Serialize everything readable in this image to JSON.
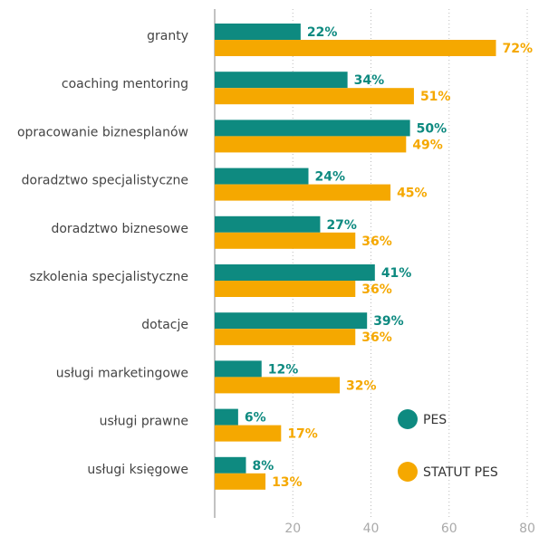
{
  "chart_data": {
    "type": "barh",
    "categories": [
      "granty",
      "coaching mentoring",
      "opracowanie biznesplanów",
      "doradztwo specjalistyczne",
      "doradztwo biznesowe",
      "szkolenia specjalistyczne",
      "dotacje",
      "usługi marketingowe",
      "usługi prawne",
      "usługi księgowe"
    ],
    "series": [
      {
        "name": "PES",
        "color": "#0e8a80",
        "values": [
          22,
          34,
          50,
          24,
          27,
          41,
          39,
          12,
          6,
          8
        ],
        "value_labels": [
          "22%",
          "34%",
          "50%",
          "24%",
          "27%",
          "41%",
          "39%",
          "12%",
          "6%",
          "8%"
        ]
      },
      {
        "name": "STATUT PES",
        "color": "#f5a800",
        "values": [
          72,
          51,
          49,
          45,
          36,
          36,
          36,
          32,
          17,
          13
        ],
        "value_labels": [
          "72%",
          "51%",
          "49%",
          "45%",
          "36%",
          "36%",
          "36%",
          "32%",
          "17%",
          "13%"
        ]
      }
    ],
    "xlim": [
      0,
      80
    ],
    "xticks": [
      20,
      40,
      60,
      80
    ],
    "grid": true,
    "legend": "lower right"
  }
}
